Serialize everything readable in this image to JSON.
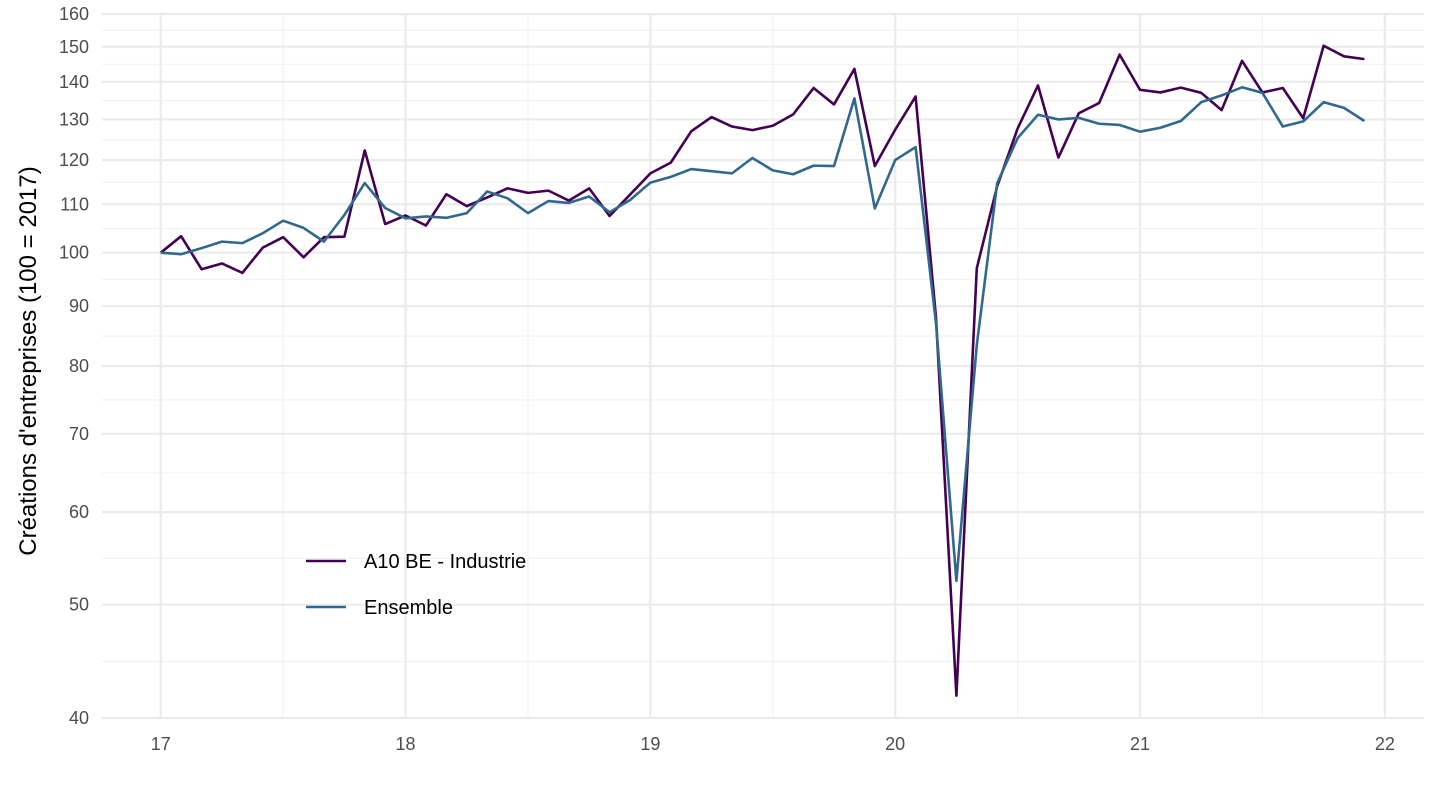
{
  "chart_data": {
    "type": "line",
    "title": "",
    "xlabel": "",
    "ylabel": "Créations d'entreprises (100 = 2017)",
    "y_scale": "log",
    "ylim": [
      40,
      160
    ],
    "xlim": [
      16.76,
      22.16
    ],
    "x_ticks": [
      17,
      18,
      19,
      20,
      21,
      22
    ],
    "x_tick_labels": [
      "17",
      "18",
      "19",
      "20",
      "21",
      "22"
    ],
    "y_ticks": [
      40,
      50,
      60,
      70,
      80,
      90,
      100,
      110,
      120,
      130,
      140,
      150,
      160
    ],
    "y_tick_labels": [
      "40",
      "50",
      "60",
      "70",
      "80",
      "90",
      "100",
      "110",
      "120",
      "130",
      "140",
      "150",
      "160"
    ],
    "grid": true,
    "legend_position": "inside-bottom-left",
    "series": [
      {
        "name": "A10 BE - Industrie",
        "color": "#440154",
        "x": [
          17.0,
          17.0833,
          17.1667,
          17.25,
          17.3333,
          17.4167,
          17.5,
          17.5833,
          17.6667,
          17.75,
          17.8333,
          17.9167,
          18.0,
          18.0833,
          18.1667,
          18.25,
          18.3333,
          18.4167,
          18.5,
          18.5833,
          18.6667,
          18.75,
          18.8333,
          18.9167,
          19.0,
          19.0833,
          19.1667,
          19.25,
          19.3333,
          19.4167,
          19.5,
          19.5833,
          19.6667,
          19.75,
          19.8333,
          19.9167,
          20.0,
          20.0833,
          20.1667,
          20.25,
          20.3333,
          20.4167,
          20.5,
          20.5833,
          20.6667,
          20.75,
          20.8333,
          20.9167,
          21.0,
          21.0833,
          21.1667,
          21.25,
          21.3333,
          21.4167,
          21.5,
          21.5833,
          21.6667,
          21.75,
          21.8333,
          21.9167
        ],
        "values": [
          100.0,
          103.3,
          96.8,
          97.9,
          96.1,
          101.0,
          103.1,
          99.1,
          103.1,
          103.2,
          122.3,
          105.8,
          107.6,
          105.5,
          112.2,
          109.6,
          111.5,
          113.5,
          112.5,
          113.0,
          110.8,
          113.5,
          107.5,
          112.1,
          116.9,
          119.4,
          127.0,
          130.6,
          128.2,
          127.3,
          128.4,
          131.3,
          138.3,
          133.9,
          143.6,
          118.6,
          127.4,
          136.0,
          88.0,
          41.8,
          97.0,
          114.0,
          127.7,
          139.0,
          120.6,
          131.6,
          134.3,
          147.7,
          137.8,
          137.1,
          138.4,
          137.0,
          132.4,
          145.9,
          137.1,
          138.3,
          130.3,
          150.3,
          147.2,
          146.4
        ]
      },
      {
        "name": "Ensemble",
        "color": "#31688E",
        "x": [
          17.0,
          17.0833,
          17.1667,
          17.25,
          17.3333,
          17.4167,
          17.5,
          17.5833,
          17.6667,
          17.75,
          17.8333,
          17.9167,
          18.0,
          18.0833,
          18.1667,
          18.25,
          18.3333,
          18.4167,
          18.5,
          18.5833,
          18.6667,
          18.75,
          18.8333,
          18.9167,
          19.0,
          19.0833,
          19.1667,
          19.25,
          19.3333,
          19.4167,
          19.5,
          19.5833,
          19.6667,
          19.75,
          19.8333,
          19.9167,
          20.0,
          20.0833,
          20.1667,
          20.25,
          20.3333,
          20.4167,
          20.5,
          20.5833,
          20.6667,
          20.75,
          20.8333,
          20.9167,
          21.0,
          21.0833,
          21.1667,
          21.25,
          21.3333,
          21.4167,
          21.5,
          21.5833,
          21.6667,
          21.75,
          21.8333,
          21.9167
        ],
        "values": [
          100.0,
          99.7,
          100.9,
          102.2,
          101.9,
          103.9,
          106.5,
          105.0,
          102.2,
          107.7,
          114.7,
          109.2,
          107.0,
          107.4,
          107.1,
          108.1,
          112.8,
          111.3,
          108.1,
          110.7,
          110.3,
          111.7,
          108.3,
          110.9,
          114.8,
          116.1,
          117.9,
          117.4,
          116.9,
          120.5,
          117.6,
          116.7,
          118.7,
          118.6,
          135.5,
          109.1,
          120.0,
          123.1,
          87.0,
          52.4,
          83.4,
          114.7,
          125.3,
          131.2,
          130.0,
          130.4,
          128.9,
          128.6,
          126.9,
          127.9,
          129.6,
          134.5,
          136.3,
          138.5,
          137.0,
          128.2,
          129.5,
          134.5,
          133.0,
          129.6
        ]
      }
    ]
  }
}
